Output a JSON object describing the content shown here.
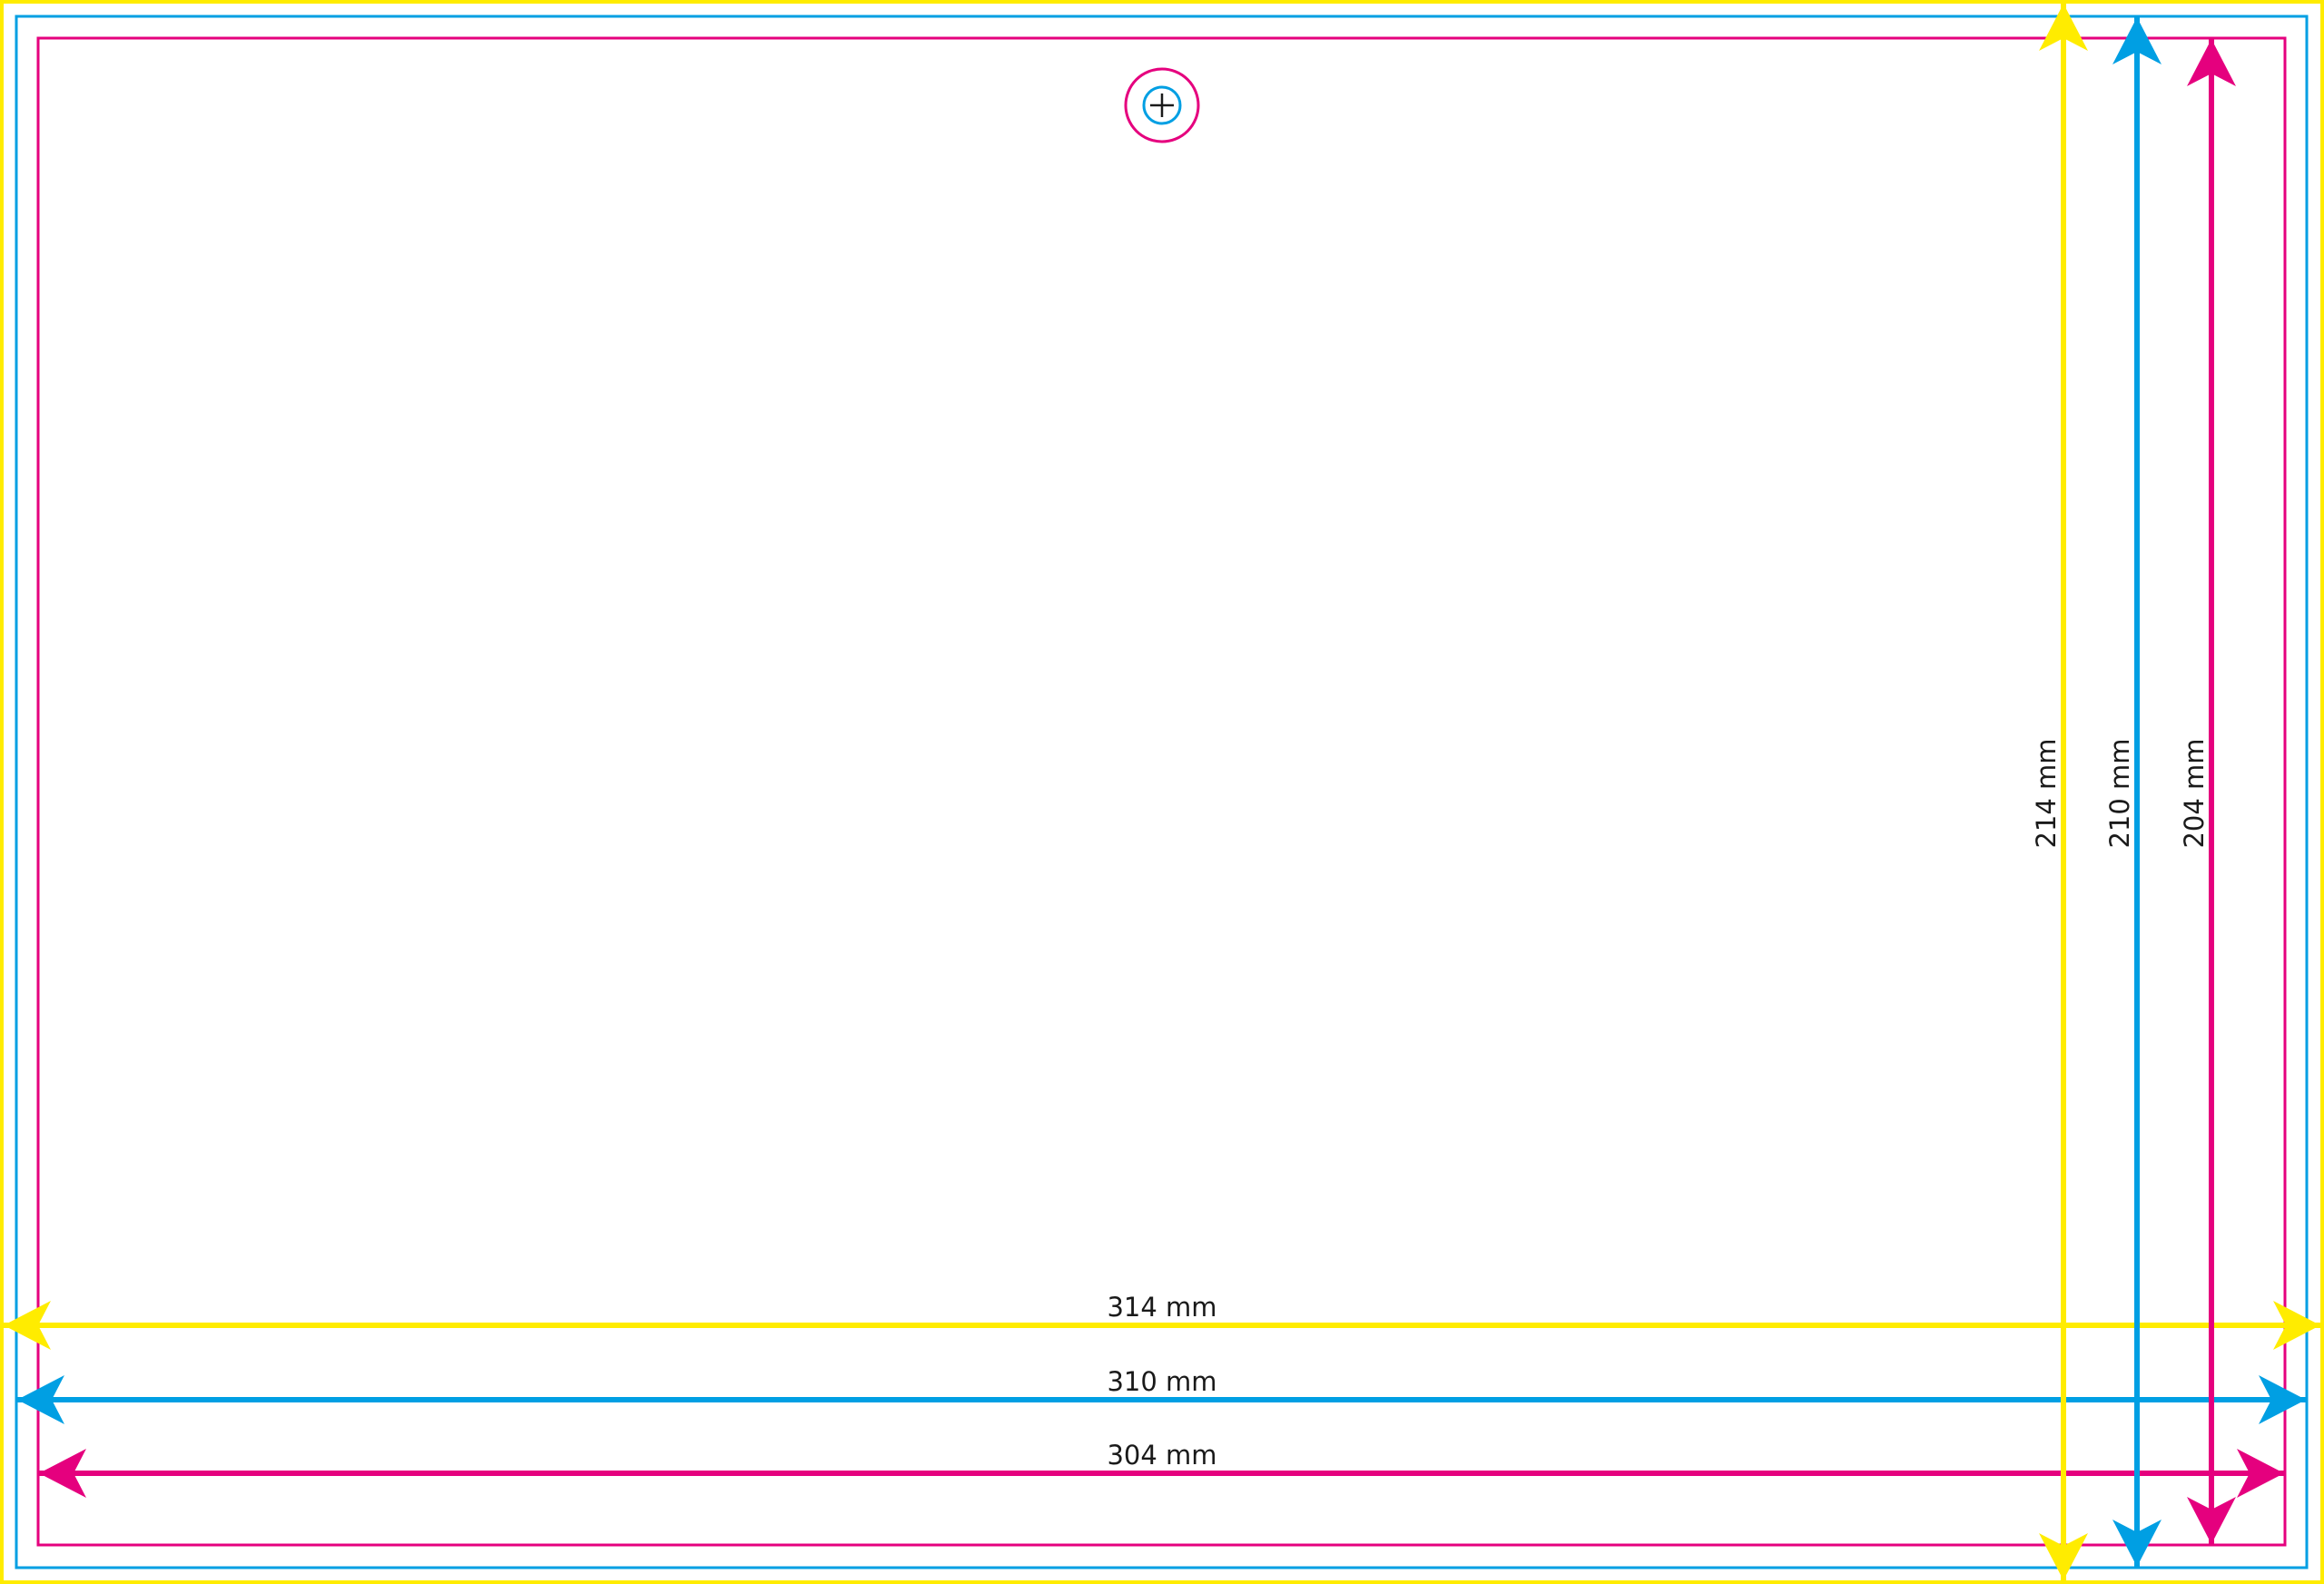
{
  "colors": {
    "bleed": "#FFEC00",
    "trim": "#009FE3",
    "safe": "#E5007E",
    "text": "#1a1a1a"
  },
  "center_mark": {
    "icon": "registration-crosshair-icon"
  },
  "dimensions": {
    "width_bleed": "314 mm",
    "width_trim": "310 mm",
    "width_safe": "304 mm",
    "height_bleed": "214 mm",
    "height_trim": "210 mm",
    "height_safe": "204 mm"
  }
}
